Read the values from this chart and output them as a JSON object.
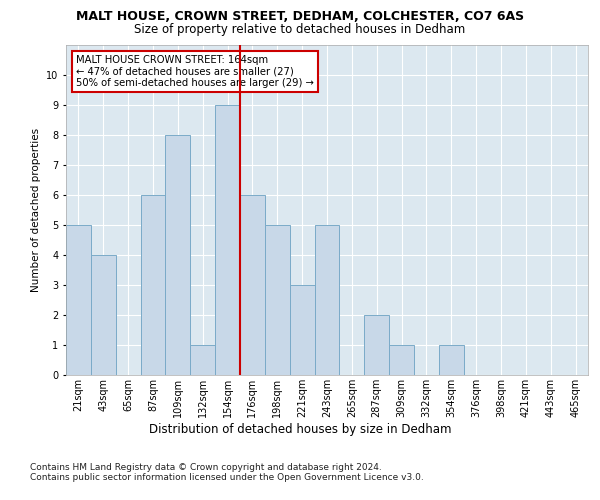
{
  "title": "MALT HOUSE, CROWN STREET, DEDHAM, COLCHESTER, CO7 6AS",
  "subtitle": "Size of property relative to detached houses in Dedham",
  "xlabel": "Distribution of detached houses by size in Dedham",
  "ylabel": "Number of detached properties",
  "footer": "Contains HM Land Registry data © Crown copyright and database right 2024.\nContains public sector information licensed under the Open Government Licence v3.0.",
  "bin_labels": [
    "21sqm",
    "43sqm",
    "65sqm",
    "87sqm",
    "109sqm",
    "132sqm",
    "154sqm",
    "176sqm",
    "198sqm",
    "221sqm",
    "243sqm",
    "265sqm",
    "287sqm",
    "309sqm",
    "332sqm",
    "354sqm",
    "376sqm",
    "398sqm",
    "421sqm",
    "443sqm",
    "465sqm"
  ],
  "bar_values": [
    5,
    4,
    0,
    6,
    8,
    1,
    9,
    6,
    5,
    3,
    5,
    0,
    2,
    1,
    0,
    1,
    0,
    0,
    0,
    0,
    0
  ],
  "bar_color": "#c8d8e8",
  "bar_edge_color": "#7aaac8",
  "vline_x": 6.5,
  "vline_color": "#cc0000",
  "annotation_text": "MALT HOUSE CROWN STREET: 164sqm\n← 47% of detached houses are smaller (27)\n50% of semi-detached houses are larger (29) →",
  "annotation_box_color": "#ffffff",
  "annotation_box_edge": "#cc0000",
  "ylim": [
    0,
    11
  ],
  "yticks": [
    0,
    1,
    2,
    3,
    4,
    5,
    6,
    7,
    8,
    9,
    10,
    11
  ],
  "plot_bg_color": "#dce8f0",
  "title_fontsize": 9,
  "subtitle_fontsize": 8.5,
  "xlabel_fontsize": 8.5,
  "ylabel_fontsize": 7.5,
  "tick_fontsize": 7,
  "footer_fontsize": 6.5
}
